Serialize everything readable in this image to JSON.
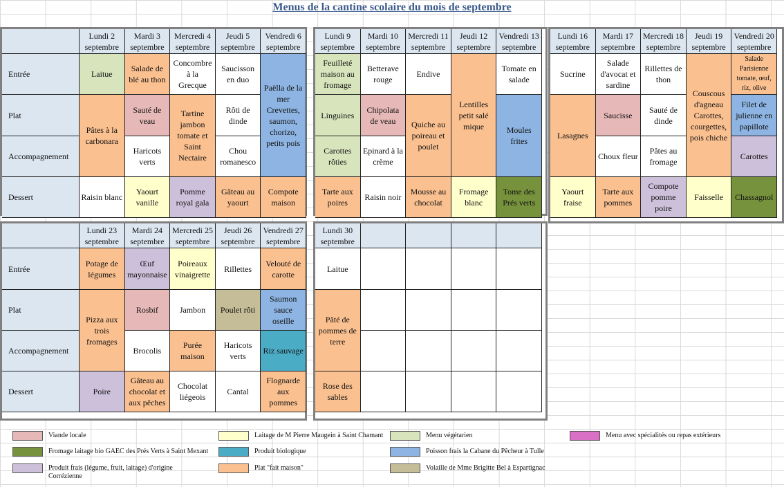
{
  "title": "Menus de la cantine scolaire du mois de septembre",
  "row_labels": [
    "Entrée",
    "Plat",
    "Accompagnement",
    "Dessert"
  ],
  "colors": {
    "viande": "#e6b9b8",
    "laitage": "#ffffcc",
    "vegetarien": "#d8e4bc",
    "speciaux": "#da6fc6",
    "bio": "#76923c",
    "produit_bio": "#4bacc6",
    "poisson": "#8db4e2",
    "correzien": "#ccc0da",
    "maison": "#fac090",
    "volaille": "#c4bd97"
  },
  "weeks": [
    {
      "days": [
        "Lundi 2 septembre",
        "Mardi 3 septembre",
        "Mercredi 4 septembre",
        "Jeudi 5 septembre",
        "Vendredi 6 septembre"
      ],
      "cells": [
        {
          "col": 0,
          "row": 0,
          "span": 1,
          "text": "Laitue",
          "color": "vegetarien"
        },
        {
          "col": 0,
          "row": 1,
          "span": 2,
          "text": "Pâtes à la carbonara",
          "color": "maison"
        },
        {
          "col": 0,
          "row": 3,
          "span": 1,
          "text": "Raisin blanc",
          "color": ""
        },
        {
          "col": 1,
          "row": 0,
          "span": 1,
          "text": "Salade de blé au thon",
          "color": "maison"
        },
        {
          "col": 1,
          "row": 1,
          "span": 1,
          "text": "Sauté de veau",
          "color": "viande"
        },
        {
          "col": 1,
          "row": 2,
          "span": 1,
          "text": "Haricots verts",
          "color": ""
        },
        {
          "col": 1,
          "row": 3,
          "span": 1,
          "text": "Yaourt vanille",
          "color": "laitage"
        },
        {
          "col": 2,
          "row": 0,
          "span": 1,
          "text": "Concombre à la Grecque",
          "color": ""
        },
        {
          "col": 2,
          "row": 1,
          "span": 2,
          "text": "Tartine jambon tomate et Saint Nectaire",
          "color": "maison"
        },
        {
          "col": 2,
          "row": 3,
          "span": 1,
          "text": "Pomme royal gala",
          "color": "correzien"
        },
        {
          "col": 3,
          "row": 0,
          "span": 1,
          "text": "Saucisson en duo",
          "color": ""
        },
        {
          "col": 3,
          "row": 1,
          "span": 1,
          "text": "Rôti de dinde",
          "color": ""
        },
        {
          "col": 3,
          "row": 2,
          "span": 1,
          "text": "Chou romanesco",
          "color": ""
        },
        {
          "col": 3,
          "row": 3,
          "span": 1,
          "text": "Gâteau au yaourt",
          "color": "maison"
        },
        {
          "col": 4,
          "row": 0,
          "span": 3,
          "text": "Paëlla de la mer Crevettes, saumon, chorizo, petits pois",
          "color": "poisson"
        },
        {
          "col": 4,
          "row": 3,
          "span": 1,
          "text": "Compote maison",
          "color": "maison"
        }
      ]
    },
    {
      "days": [
        "Lundi 9 septembre",
        "Mardi 10 septembre",
        "Mercredi 11 septembre",
        "Jeudi 12 septembre",
        "Vendredi 13 septembre"
      ],
      "cells": [
        {
          "col": 0,
          "row": 0,
          "span": 1,
          "text": "Feuilleté maison au fromage",
          "color": "vegetarien"
        },
        {
          "col": 0,
          "row": 1,
          "span": 1,
          "text": "Linguines",
          "color": "vegetarien"
        },
        {
          "col": 0,
          "row": 2,
          "span": 1,
          "text": "Carottes rôties",
          "color": "vegetarien"
        },
        {
          "col": 0,
          "row": 3,
          "span": 1,
          "text": "Tarte aux poires",
          "color": "maison"
        },
        {
          "col": 1,
          "row": 0,
          "span": 1,
          "text": "Betterave rouge",
          "color": ""
        },
        {
          "col": 1,
          "row": 1,
          "span": 1,
          "text": "Chipolata de veau",
          "color": "viande"
        },
        {
          "col": 1,
          "row": 2,
          "span": 1,
          "text": "Epinard à la crème",
          "color": ""
        },
        {
          "col": 1,
          "row": 3,
          "span": 1,
          "text": "Raisin noir",
          "color": ""
        },
        {
          "col": 2,
          "row": 0,
          "span": 1,
          "text": "Endive",
          "color": ""
        },
        {
          "col": 2,
          "row": 1,
          "span": 2,
          "text": "Quiche au poireau et poulet",
          "color": "maison"
        },
        {
          "col": 2,
          "row": 3,
          "span": 1,
          "text": "Mousse au chocolat",
          "color": "maison"
        },
        {
          "col": 3,
          "row": 0,
          "span": 3,
          "text": "Lentilles petit salé mique",
          "color": "maison"
        },
        {
          "col": 3,
          "row": 3,
          "span": 1,
          "text": "Fromage blanc",
          "color": "laitage"
        },
        {
          "col": 4,
          "row": 0,
          "span": 1,
          "text": "Tomate en salade",
          "color": ""
        },
        {
          "col": 4,
          "row": 1,
          "span": 2,
          "text": "Moules frites",
          "color": "poisson"
        },
        {
          "col": 4,
          "row": 3,
          "span": 1,
          "text": "Tome des Prés verts",
          "color": "bio"
        }
      ]
    },
    {
      "days": [
        "Lundi 16 septembre",
        "Mardi 17 septembre",
        "Mercredi 18 septembre",
        "Jeudi 19 septembre",
        "Vendredi 20 septembre"
      ],
      "cells": [
        {
          "col": 0,
          "row": 0,
          "span": 1,
          "text": "Sucrine",
          "color": ""
        },
        {
          "col": 0,
          "row": 1,
          "span": 2,
          "text": "Lasagnes",
          "color": "maison"
        },
        {
          "col": 0,
          "row": 3,
          "span": 1,
          "text": "Yaourt fraise",
          "color": "laitage"
        },
        {
          "col": 1,
          "row": 0,
          "span": 1,
          "text": "Salade d'avocat et sardine",
          "color": ""
        },
        {
          "col": 1,
          "row": 1,
          "span": 1,
          "text": "Saucisse",
          "color": "viande"
        },
        {
          "col": 1,
          "row": 2,
          "span": 1,
          "text": "Choux fleur",
          "color": ""
        },
        {
          "col": 1,
          "row": 3,
          "span": 1,
          "text": "Tarte aux pommes",
          "color": "maison"
        },
        {
          "col": 2,
          "row": 0,
          "span": 1,
          "text": "Rillettes de thon",
          "color": ""
        },
        {
          "col": 2,
          "row": 1,
          "span": 1,
          "text": "Sauté de dinde",
          "color": ""
        },
        {
          "col": 2,
          "row": 2,
          "span": 1,
          "text": "Pâtes au fromage",
          "color": ""
        },
        {
          "col": 2,
          "row": 3,
          "span": 1,
          "text": "Compote pomme poire",
          "color": "correzien"
        },
        {
          "col": 3,
          "row": 0,
          "span": 3,
          "text": "Couscous d'agneau Carottes, courgettes, pois chiche",
          "color": "maison"
        },
        {
          "col": 3,
          "row": 3,
          "span": 1,
          "text": "Faisselle",
          "color": "laitage"
        },
        {
          "col": 4,
          "row": 0,
          "span": 1,
          "text": "Salade Parisienne tomate, œuf, riz, olive",
          "color": "maison",
          "small": true
        },
        {
          "col": 4,
          "row": 1,
          "span": 1,
          "text": "Filet de julienne en papillote",
          "color": "poisson"
        },
        {
          "col": 4,
          "row": 2,
          "span": 1,
          "text": "Carottes",
          "color": "correzien"
        },
        {
          "col": 4,
          "row": 3,
          "span": 1,
          "text": "Chassagnol",
          "color": "bio"
        }
      ]
    },
    {
      "days": [
        "Lundi 23 septembre",
        "Mardi 24 septembre",
        "Mercredi 25 septembre",
        "Jeudi 26 septembre",
        "Vendredi 27 septembre"
      ],
      "cells": [
        {
          "col": 0,
          "row": 0,
          "span": 1,
          "text": "Potage de légumes",
          "color": "maison"
        },
        {
          "col": 0,
          "row": 1,
          "span": 2,
          "text": "Pizza aux trois fromages",
          "color": "maison"
        },
        {
          "col": 0,
          "row": 3,
          "span": 1,
          "text": "Poire",
          "color": "correzien"
        },
        {
          "col": 1,
          "row": 0,
          "span": 1,
          "text": "Œuf mayonnaise",
          "color": "correzien"
        },
        {
          "col": 1,
          "row": 1,
          "span": 1,
          "text": "Rosbif",
          "color": "viande"
        },
        {
          "col": 1,
          "row": 2,
          "span": 1,
          "text": "Brocolis",
          "color": ""
        },
        {
          "col": 1,
          "row": 3,
          "span": 1,
          "text": "Gâteau au chocolat et aux pêches",
          "color": "maison"
        },
        {
          "col": 2,
          "row": 0,
          "span": 1,
          "text": "Poireaux vinaigrette",
          "color": "laitage"
        },
        {
          "col": 2,
          "row": 1,
          "span": 1,
          "text": "Jambon",
          "color": ""
        },
        {
          "col": 2,
          "row": 2,
          "span": 1,
          "text": "Purée maison",
          "color": "maison"
        },
        {
          "col": 2,
          "row": 3,
          "span": 1,
          "text": "Chocolat liégeois",
          "color": ""
        },
        {
          "col": 3,
          "row": 0,
          "span": 1,
          "text": "Rillettes",
          "color": ""
        },
        {
          "col": 3,
          "row": 1,
          "span": 1,
          "text": "Poulet rôti",
          "color": "volaille"
        },
        {
          "col": 3,
          "row": 2,
          "span": 1,
          "text": "Haricots verts",
          "color": ""
        },
        {
          "col": 3,
          "row": 3,
          "span": 1,
          "text": "Cantal",
          "color": ""
        },
        {
          "col": 4,
          "row": 0,
          "span": 1,
          "text": "Velouté de carotte",
          "color": "maison"
        },
        {
          "col": 4,
          "row": 1,
          "span": 1,
          "text": "Saumon sauce oseille",
          "color": "poisson"
        },
        {
          "col": 4,
          "row": 2,
          "span": 1,
          "text": "Riz sauvage",
          "color": "produit_bio"
        },
        {
          "col": 4,
          "row": 3,
          "span": 1,
          "text": "Flognarde aux pommes",
          "color": "maison"
        }
      ]
    },
    {
      "days": [
        "Lundi 30 septembre",
        "",
        "",
        "",
        ""
      ],
      "cells": [
        {
          "col": 0,
          "row": 0,
          "span": 1,
          "text": "Laitue",
          "color": ""
        },
        {
          "col": 0,
          "row": 1,
          "span": 2,
          "text": "Pâté de pommes de terre",
          "color": "maison"
        },
        {
          "col": 0,
          "row": 3,
          "span": 1,
          "text": "Rose des sables",
          "color": "maison"
        }
      ]
    }
  ],
  "legend": [
    {
      "text": "Viande locale",
      "color": "viande"
    },
    {
      "text": "Laitage de M Pierre Maugein à Saint Chamant",
      "color": "laitage"
    },
    {
      "text": "Menu végétarien",
      "color": "vegetarien"
    },
    {
      "text": "Menu avec spécialités ou repas extérieurs",
      "color": "speciaux"
    },
    {
      "text": "Fromage laitage bio GAEC des Prés Verts à Saint Mexant",
      "color": "bio"
    },
    {
      "text": "Produit biologique",
      "color": "produit_bio"
    },
    {
      "text": "Poisson frais la Cabane du Pêcheur à Tulle",
      "color": "poisson"
    },
    {
      "text": "Produit frais (légume, fruit, laitage) d'origine Corrézienne",
      "color": "correzien"
    },
    {
      "text": "Plat \"fait maison\"",
      "color": "maison"
    },
    {
      "text": "Volaille de Mme Brigitte Bel à Espartignac",
      "color": "volaille"
    }
  ]
}
